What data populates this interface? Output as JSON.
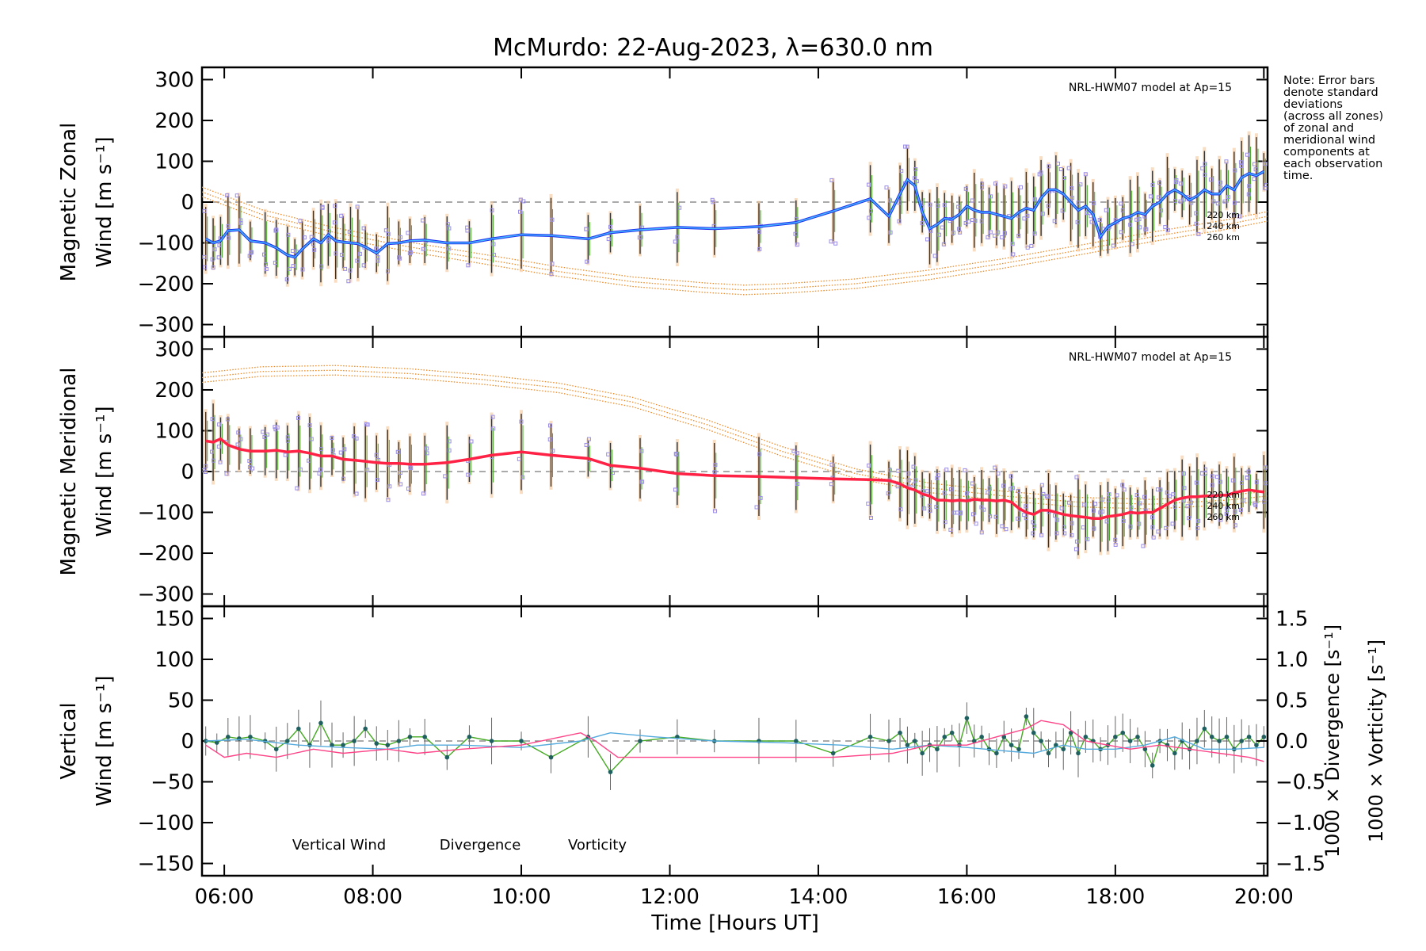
{
  "title": "McMurdo: 22-Aug-2023, λ=630.0 nm",
  "note_lines": [
    "Note: Error bars",
    "denote standard",
    "deviations",
    "(across all zones)",
    "of zonal and",
    "meridional wind",
    "components at",
    "each observation",
    "time."
  ],
  "colors": {
    "zonal": "#2233ee",
    "zonal_light": "#44bbff",
    "meridional": "#ff2244",
    "model": "#f08a24",
    "vertical": "#44aa22",
    "divergence": "#55aadd",
    "vorticity": "#ff4488",
    "point": "#1f5f5f",
    "zone": "#9a8ee6"
  },
  "x_axis": {
    "label": "Time [Hours UT]",
    "range": [
      5.7,
      20.05
    ],
    "ticks": [
      6,
      8,
      10,
      12,
      14,
      16,
      18,
      20
    ],
    "tick_labels": [
      "06:00",
      "08:00",
      "10:00",
      "12:00",
      "14:00",
      "16:00",
      "18:00",
      "20:00"
    ]
  },
  "chart_data": [
    {
      "type": "line",
      "panel": "zonal",
      "ylabel_line1": "Magnetic Zonal",
      "ylabel_line2": "Wind [m s⁻¹]",
      "ylim": [
        -330,
        330
      ],
      "yticks": [
        -300,
        -200,
        -100,
        0,
        100,
        200,
        300
      ],
      "ytick_labels": [
        "−300",
        "−200",
        "−100",
        "0",
        "100",
        "200",
        "300"
      ],
      "model_label": "NRL-HWM07 model at Ap=15",
      "model_altitudes": [
        "220 km",
        "240 km",
        "260 km"
      ],
      "model_curve": {
        "x": [
          5.7,
          6.5,
          7.5,
          8.5,
          9.5,
          10.5,
          11.5,
          12.5,
          13.0,
          13.5,
          14.5,
          15.5,
          16.5,
          17.5,
          18.5,
          19.5,
          20.05
        ],
        "y": [
          25,
          -30,
          -75,
          -110,
          -140,
          -170,
          -195,
          -210,
          -215,
          -212,
          -200,
          -178,
          -150,
          -118,
          -85,
          -55,
          -35
        ]
      },
      "series": [
        {
          "name": "Zonal wind",
          "x": [
            5.75,
            5.85,
            5.95,
            6.05,
            6.2,
            6.35,
            6.55,
            6.7,
            6.85,
            6.95,
            7.05,
            7.2,
            7.3,
            7.4,
            7.5,
            7.6,
            7.7,
            7.8,
            7.9,
            8.05,
            8.2,
            8.35,
            8.5,
            8.7,
            9.0,
            9.3,
            9.6,
            10.0,
            10.4,
            10.9,
            11.2,
            11.6,
            12.1,
            12.6,
            13.2,
            13.7,
            14.2,
            14.7,
            14.95,
            15.1,
            15.2,
            15.3,
            15.4,
            15.5,
            15.6,
            15.7,
            15.8,
            15.9,
            16.0,
            16.1,
            16.2,
            16.3,
            16.4,
            16.5,
            16.6,
            16.7,
            16.8,
            16.9,
            17.0,
            17.1,
            17.2,
            17.3,
            17.4,
            17.5,
            17.6,
            17.7,
            17.8,
            17.9,
            18.0,
            18.1,
            18.2,
            18.3,
            18.4,
            18.5,
            18.6,
            18.7,
            18.8,
            18.9,
            19.0,
            19.1,
            19.2,
            19.3,
            19.4,
            19.5,
            19.6,
            19.7,
            19.8,
            19.9,
            20.0
          ],
          "y": [
            -90,
            -100,
            -95,
            -70,
            -68,
            -95,
            -100,
            -112,
            -130,
            -135,
            -115,
            -90,
            -100,
            -80,
            -95,
            -98,
            -100,
            -102,
            -110,
            -125,
            -102,
            -100,
            -95,
            -93,
            -100,
            -100,
            -90,
            -80,
            -82,
            -90,
            -75,
            -68,
            -62,
            -65,
            -60,
            -50,
            -22,
            8,
            -35,
            20,
            55,
            40,
            -25,
            -65,
            -55,
            -40,
            -42,
            -30,
            -10,
            -20,
            -25,
            -25,
            -30,
            -35,
            -40,
            -25,
            -15,
            -20,
            10,
            30,
            30,
            20,
            0,
            -20,
            -10,
            -30,
            -85,
            -60,
            -50,
            -40,
            -35,
            -25,
            -30,
            -10,
            0,
            20,
            30,
            20,
            5,
            15,
            30,
            20,
            20,
            40,
            30,
            60,
            70,
            65,
            75
          ]
        }
      ]
    },
    {
      "type": "line",
      "panel": "meridional",
      "ylabel_line1": "Magnetic Meridional",
      "ylabel_line2": "Wind [m s⁻¹]",
      "ylim": [
        -330,
        330
      ],
      "yticks": [
        -300,
        -200,
        -100,
        0,
        100,
        200,
        300
      ],
      "ytick_labels": [
        "−300",
        "−200",
        "−100",
        "0",
        "100",
        "200",
        "300"
      ],
      "model_label": "NRL-HWM07 model at Ap=15",
      "model_altitudes": [
        "220 km",
        "240 km",
        "260 km"
      ],
      "model_curve": {
        "x": [
          5.7,
          6.5,
          7.5,
          8.5,
          9.5,
          10.5,
          11.5,
          12.5,
          13.5,
          14.5,
          15.5,
          16.5,
          17.5,
          18.5,
          19.5,
          20.05
        ],
        "y": [
          230,
          245,
          248,
          240,
          225,
          205,
          170,
          115,
          50,
          -5,
          -40,
          -60,
          -75,
          -80,
          -70,
          -60
        ]
      },
      "series": [
        {
          "name": "Meridional wind",
          "x": [
            5.75,
            5.85,
            5.95,
            6.05,
            6.2,
            6.35,
            6.55,
            6.7,
            6.85,
            7.0,
            7.15,
            7.3,
            7.45,
            7.6,
            7.75,
            7.9,
            8.05,
            8.2,
            8.35,
            8.5,
            8.7,
            9.0,
            9.3,
            9.6,
            10.0,
            10.4,
            10.9,
            11.2,
            11.6,
            12.1,
            12.6,
            13.2,
            13.7,
            14.2,
            14.7,
            14.95,
            15.1,
            15.2,
            15.3,
            15.4,
            15.5,
            15.6,
            15.7,
            15.8,
            15.9,
            16.0,
            16.1,
            16.2,
            16.3,
            16.4,
            16.5,
            16.6,
            16.7,
            16.8,
            16.9,
            17.0,
            17.1,
            17.2,
            17.3,
            17.4,
            17.5,
            17.6,
            17.7,
            17.8,
            17.9,
            18.0,
            18.1,
            18.2,
            18.3,
            18.4,
            18.5,
            18.6,
            18.7,
            18.8,
            18.9,
            19.0,
            19.1,
            19.2,
            19.3,
            19.4,
            19.5,
            19.6,
            19.7,
            19.8,
            19.9,
            20.0
          ],
          "y": [
            75,
            72,
            80,
            65,
            55,
            50,
            50,
            52,
            48,
            50,
            45,
            38,
            38,
            30,
            28,
            25,
            22,
            20,
            20,
            18,
            18,
            22,
            30,
            40,
            48,
            40,
            32,
            15,
            8,
            -5,
            -10,
            -12,
            -15,
            -18,
            -20,
            -22,
            -30,
            -40,
            -45,
            -55,
            -60,
            -70,
            -70,
            -72,
            -70,
            -72,
            -68,
            -70,
            -70,
            -72,
            -70,
            -75,
            -90,
            -100,
            -105,
            -95,
            -95,
            -100,
            -105,
            -108,
            -110,
            -112,
            -115,
            -115,
            -110,
            -108,
            -105,
            -100,
            -102,
            -100,
            -100,
            -90,
            -80,
            -70,
            -65,
            -62,
            -62,
            -60,
            -60,
            -58,
            -58,
            -52,
            -48,
            -45,
            -48,
            -50
          ]
        }
      ]
    },
    {
      "type": "line",
      "panel": "vertical",
      "ylabel_line1": "Vertical",
      "ylabel_line2": "Wind [m s⁻¹]",
      "ylim": [
        -165,
        165
      ],
      "yticks": [
        -150,
        -100,
        -50,
        0,
        50,
        100,
        150
      ],
      "ytick_labels": [
        "−150",
        "−100",
        "−50",
        "0",
        "50",
        "100",
        "150"
      ],
      "y2": {
        "range": [
          -1.65,
          1.65
        ],
        "ticks": [
          -1.5,
          -1.0,
          -0.5,
          0,
          0.5,
          1.0,
          1.5
        ],
        "tick_labels": [
          "−1.5",
          "−1.0",
          "−0.5",
          "0.0",
          "0.5",
          "1.0",
          "1.5"
        ],
        "label_divergence": "1000 × Divergence [s⁻¹]",
        "label_vorticity": "1000 × Vorticity [s⁻¹]"
      },
      "legend": [
        "Vertical Wind",
        "Divergence",
        "Vorticity"
      ],
      "series": [
        {
          "name": "Vertical Wind",
          "x": [
            5.75,
            5.9,
            6.05,
            6.2,
            6.35,
            6.55,
            6.7,
            6.85,
            7.0,
            7.15,
            7.3,
            7.45,
            7.6,
            7.75,
            7.9,
            8.05,
            8.2,
            8.35,
            8.5,
            8.7,
            9.0,
            9.3,
            9.6,
            10.0,
            10.4,
            10.9,
            11.2,
            11.6,
            12.1,
            12.6,
            13.2,
            13.7,
            14.2,
            14.7,
            14.95,
            15.1,
            15.2,
            15.3,
            15.4,
            15.5,
            15.6,
            15.7,
            15.8,
            15.9,
            16.0,
            16.1,
            16.2,
            16.3,
            16.4,
            16.5,
            16.6,
            16.7,
            16.8,
            16.9,
            17.0,
            17.1,
            17.2,
            17.3,
            17.4,
            17.5,
            17.6,
            17.7,
            17.8,
            17.9,
            18.0,
            18.1,
            18.2,
            18.3,
            18.4,
            18.5,
            18.6,
            18.7,
            18.8,
            18.9,
            19.0,
            19.1,
            19.2,
            19.3,
            19.4,
            19.5,
            19.6,
            19.7,
            19.8,
            19.9,
            20.0
          ],
          "y": [
            0,
            -2,
            5,
            3,
            5,
            0,
            -10,
            0,
            15,
            -5,
            22,
            -5,
            -5,
            0,
            15,
            -3,
            -5,
            0,
            5,
            5,
            -20,
            5,
            0,
            0,
            -20,
            5,
            -38,
            0,
            5,
            0,
            0,
            0,
            -15,
            5,
            0,
            10,
            -5,
            0,
            -15,
            -5,
            -10,
            5,
            10,
            -5,
            28,
            0,
            5,
            -10,
            -15,
            5,
            -5,
            -10,
            30,
            10,
            0,
            -15,
            -5,
            -10,
            10,
            -15,
            5,
            0,
            -10,
            -5,
            5,
            10,
            0,
            5,
            -10,
            -30,
            0,
            -5,
            -15,
            0,
            -10,
            0,
            15,
            5,
            0,
            5,
            -10,
            0,
            5,
            -5,
            5
          ]
        },
        {
          "name": "Divergence",
          "axis": "y2",
          "x": [
            5.75,
            6.3,
            7.0,
            7.6,
            8.2,
            8.6,
            9.2,
            10.0,
            10.8,
            11.2,
            11.8,
            12.6,
            13.5,
            14.3,
            15.0,
            15.5,
            16.0,
            16.5,
            16.9,
            17.3,
            17.6,
            18.0,
            18.4,
            18.8,
            19.2,
            19.6,
            20.0
          ],
          "y": [
            0.0,
            0.02,
            -0.05,
            -0.08,
            -0.1,
            -0.05,
            -0.05,
            -0.08,
            0.0,
            0.1,
            0.05,
            0.0,
            -0.02,
            -0.05,
            -0.1,
            -0.05,
            -0.08,
            -0.12,
            -0.15,
            -0.05,
            -0.1,
            -0.1,
            -0.05,
            0.05,
            -0.1,
            -0.1,
            -0.08
          ]
        },
        {
          "name": "Vorticity",
          "axis": "y2",
          "x": [
            5.75,
            6.0,
            6.3,
            6.7,
            7.2,
            7.6,
            8.2,
            8.6,
            9.2,
            10.0,
            10.8,
            11.0,
            11.3,
            12.6,
            13.5,
            14.2,
            15.0,
            15.5,
            16.0,
            16.4,
            16.8,
            17.0,
            17.3,
            17.6,
            17.9,
            18.2,
            18.6,
            19.0,
            19.4,
            19.8,
            20.0
          ],
          "y": [
            -0.05,
            -0.2,
            -0.15,
            -0.2,
            -0.1,
            -0.15,
            -0.1,
            -0.15,
            -0.1,
            -0.05,
            0.1,
            0.0,
            -0.2,
            -0.2,
            -0.2,
            -0.2,
            -0.15,
            -0.05,
            -0.05,
            0.05,
            0.15,
            0.25,
            0.2,
            0.0,
            -0.05,
            -0.1,
            -0.05,
            -0.1,
            -0.15,
            -0.2,
            -0.25
          ]
        }
      ]
    }
  ]
}
